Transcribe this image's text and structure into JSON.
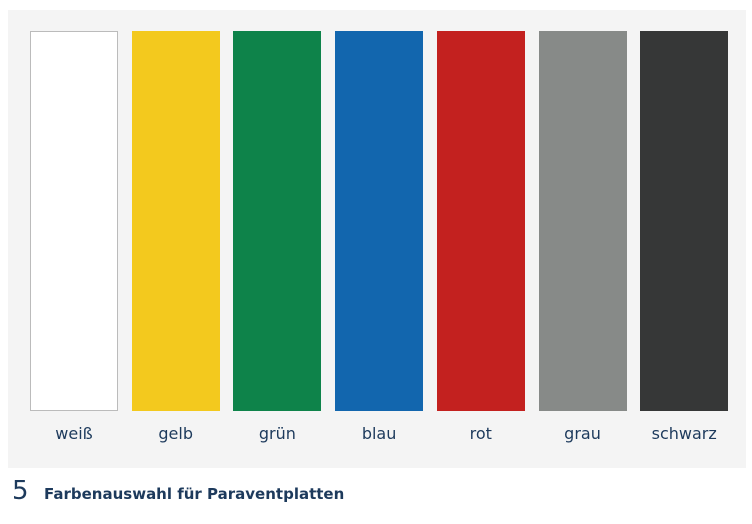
{
  "swatches": [
    {
      "label": "weiß",
      "color": "#ffffff"
    },
    {
      "label": "gelb",
      "color": "#f3c91e"
    },
    {
      "label": "grün",
      "color": "#0e834a"
    },
    {
      "label": "blau",
      "color": "#1266ae"
    },
    {
      "label": "rot",
      "color": "#c3211f"
    },
    {
      "label": "grau",
      "color": "#878a88"
    },
    {
      "label": "schwarz",
      "color": "#363737"
    }
  ],
  "caption": {
    "number": "5",
    "text": "Farbenauswahl für Paraventplatten"
  }
}
